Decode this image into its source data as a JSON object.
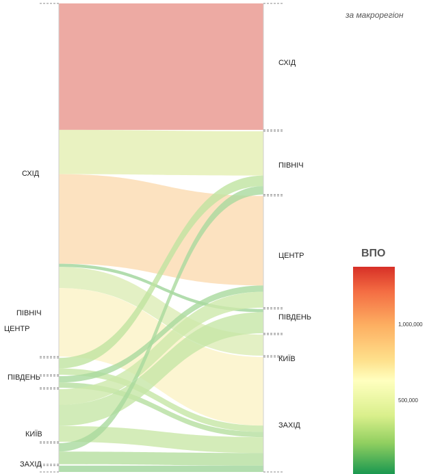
{
  "subtitle": "за макрорегіон",
  "left_labels": [
    "СХІД",
    "ПІВНІЧ",
    "ЦЕНТР",
    "ПІВДЕНЬ",
    "КИЇВ",
    "ЗАХІД"
  ],
  "right_labels": [
    "СХІД",
    "ПІВНІЧ",
    "ЦЕНТР",
    "ПІВДЕНЬ",
    "КИЇВ",
    "ЗАХІД"
  ],
  "legend": {
    "title": "ВПО",
    "ticks": [
      "1,000,000",
      "500,000"
    ],
    "colors": [
      "#d73027",
      "#fdae61",
      "#ffffbf",
      "#91cf60",
      "#1a9850"
    ]
  },
  "chart_data": {
    "type": "sankey",
    "nodes_left": [
      "СХІД",
      "ПІВНІЧ",
      "ЦЕНТР",
      "ПІВДЕНЬ",
      "КИЇВ",
      "ЗАХІД"
    ],
    "nodes_right": [
      "СХІД",
      "ПІВНІЧ",
      "ЦЕНТР",
      "ПІВДЕНЬ",
      "КИЇВ",
      "ЗАХІД"
    ],
    "legend_ticks": [
      1000000,
      500000
    ],
    "flows": [
      {
        "from": "СХІД",
        "to": "СХІД",
        "value": 1200000,
        "color": "#e8958c"
      },
      {
        "from": "СХІД",
        "to": "ПІВНІЧ",
        "value": 420000,
        "color": "#e4efb2"
      },
      {
        "from": "СХІД",
        "to": "ЦЕНТР",
        "value": 850000,
        "color": "#fbdbb0"
      },
      {
        "from": "СХІД",
        "to": "ПІВДЕНЬ",
        "value": 30000,
        "color": "#9fd49a"
      },
      {
        "from": "СХІД",
        "to": "КИЇВ",
        "value": 200000,
        "color": "#dcecb5"
      },
      {
        "from": "СХІД",
        "to": "ЗАХІД",
        "value": 650000,
        "color": "#fbf3c6"
      },
      {
        "from": "ПІВНІЧ",
        "to": "ПІВНІЧ",
        "value": 100000,
        "color": "#bfe3a0"
      },
      {
        "from": "ПІВНІЧ",
        "to": "ЗАХІД",
        "value": 60000,
        "color": "#c5e6a5"
      },
      {
        "from": "ЦЕНТР",
        "to": "ЦЕНТР",
        "value": 60000,
        "color": "#a9d99d"
      },
      {
        "from": "ЦЕНТР",
        "to": "ЗАХІД",
        "value": 50000,
        "color": "#b5df9f"
      },
      {
        "from": "ПІВДЕНЬ",
        "to": "ПІВДЕНЬ",
        "value": 200000,
        "color": "#c6e6a6"
      },
      {
        "from": "ПІВДЕНЬ",
        "to": "ЦЕНТР",
        "value": 150000,
        "color": "#cde8aa"
      },
      {
        "from": "ПІВДЕНЬ",
        "to": "ЗАХІД",
        "value": 150000,
        "color": "#c9e7a7"
      },
      {
        "from": "КИЇВ",
        "to": "ПІВНІЧ",
        "value": 80000,
        "color": "#a9d99d"
      },
      {
        "from": "КИЇВ",
        "to": "ЗАХІД",
        "value": 120000,
        "color": "#b5df9f"
      },
      {
        "from": "ЗАХІД",
        "to": "ЗАХІД",
        "value": 60000,
        "color": "#9fd49a"
      }
    ]
  }
}
